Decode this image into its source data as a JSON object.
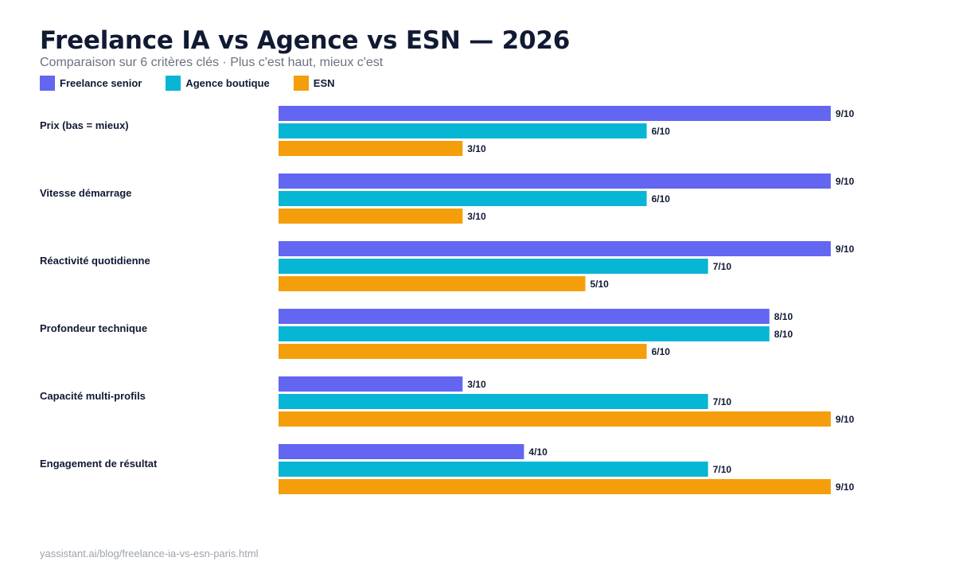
{
  "chart_data": {
    "type": "bar",
    "orientation": "horizontal",
    "title": "Freelance IA vs Agence vs ESN — 2026",
    "subtitle": "Comparaison sur 6 critères clés · Plus c'est haut, mieux c'est",
    "categories": [
      "Prix (bas = mieux)",
      "Vitesse démarrage",
      "Réactivité quotidienne",
      "Profondeur technique",
      "Capacité multi-profils",
      "Engagement de résultat"
    ],
    "series": [
      {
        "name": "Freelance senior",
        "color": "#6366f1",
        "values": [
          9,
          9,
          9,
          8,
          3,
          4
        ]
      },
      {
        "name": "Agence boutique",
        "color": "#06b6d4",
        "values": [
          6,
          6,
          7,
          8,
          7,
          7
        ]
      },
      {
        "name": "ESN",
        "color": "#f59e0b",
        "values": [
          3,
          3,
          5,
          6,
          9,
          9
        ]
      }
    ],
    "value_label_suffix": "/10",
    "xlim": [
      0,
      10
    ],
    "grid": false,
    "legend_position": "top-left"
  },
  "footer": {
    "source": "yassistant.ai/blog/freelance-ia-vs-esn-paris.html"
  }
}
